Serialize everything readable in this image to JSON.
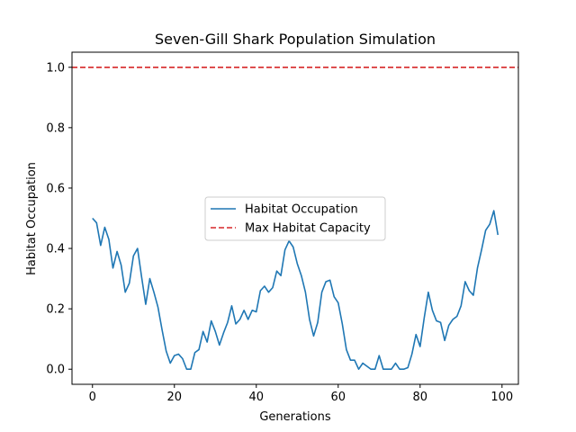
{
  "chart_data": {
    "type": "line",
    "title": "Seven-Gill Shark Population Simulation",
    "xlabel": "Generations",
    "ylabel": "Habitat Occupation",
    "xlim": [
      -5,
      104
    ],
    "ylim": [
      -0.05,
      1.05
    ],
    "xticks": [
      "0",
      "20",
      "40",
      "60",
      "80",
      "100"
    ],
    "yticks": [
      "0.0",
      "0.2",
      "0.4",
      "0.6",
      "0.8",
      "1.0"
    ],
    "grid": false,
    "legend_position": "center",
    "series": [
      {
        "name": "Habitat Occupation",
        "color": "#1f77b4",
        "style": "solid",
        "x": [
          0,
          1,
          2,
          3,
          4,
          5,
          6,
          7,
          8,
          9,
          10,
          11,
          12,
          13,
          14,
          15,
          16,
          17,
          18,
          19,
          20,
          21,
          22,
          23,
          24,
          25,
          26,
          27,
          28,
          29,
          30,
          31,
          32,
          33,
          34,
          35,
          36,
          37,
          38,
          39,
          40,
          41,
          42,
          43,
          44,
          45,
          46,
          47,
          48,
          49,
          50,
          51,
          52,
          53,
          54,
          55,
          56,
          57,
          58,
          59,
          60,
          61,
          62,
          63,
          64,
          65,
          66,
          67,
          68,
          69,
          70,
          71,
          72,
          73,
          74,
          75,
          76,
          77,
          78,
          79,
          80,
          81,
          82,
          83,
          84,
          85,
          86,
          87,
          88,
          89,
          90,
          91,
          92,
          93,
          94,
          95,
          96,
          97,
          98,
          99
        ],
        "y": [
          0.5,
          0.485,
          0.41,
          0.47,
          0.43,
          0.335,
          0.39,
          0.345,
          0.255,
          0.285,
          0.375,
          0.4,
          0.305,
          0.215,
          0.3,
          0.255,
          0.205,
          0.13,
          0.06,
          0.02,
          0.045,
          0.05,
          0.035,
          0.0,
          0.0,
          0.055,
          0.065,
          0.125,
          0.09,
          0.16,
          0.125,
          0.08,
          0.12,
          0.155,
          0.21,
          0.15,
          0.165,
          0.195,
          0.165,
          0.195,
          0.19,
          0.26,
          0.275,
          0.255,
          0.27,
          0.325,
          0.31,
          0.395,
          0.425,
          0.405,
          0.35,
          0.31,
          0.255,
          0.165,
          0.11,
          0.155,
          0.255,
          0.29,
          0.295,
          0.24,
          0.22,
          0.15,
          0.065,
          0.03,
          0.03,
          0.0,
          0.02,
          0.01,
          0.0,
          0.0,
          0.045,
          0.0,
          0.0,
          0.0,
          0.02,
          0.0,
          0.0,
          0.005,
          0.05,
          0.115,
          0.075,
          0.17,
          0.255,
          0.195,
          0.16,
          0.155,
          0.095,
          0.145,
          0.165,
          0.175,
          0.21,
          0.29,
          0.26,
          0.245,
          0.335,
          0.395,
          0.46,
          0.48,
          0.525,
          0.445
        ]
      },
      {
        "name": "Max Habitat Capacity",
        "color": "#d62728",
        "style": "dashed",
        "x": [
          -5,
          104
        ],
        "y": [
          1.0,
          1.0
        ]
      }
    ]
  }
}
